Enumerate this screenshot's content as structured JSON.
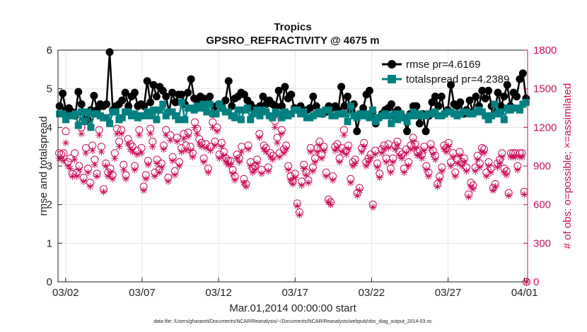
{
  "chart_data": {
    "type": "line",
    "title": "Tropics",
    "subtitle": "GPSRO_REFRACTIVITY @ 4675 m",
    "xlabel": "Mar.01,2014 00:00:00 start",
    "ylabel_left": "rmse and totalspread",
    "ylabel_right": "# of obs: o=possible; ×=assimilated",
    "footer": "data file: /Users/gharamti/Documents/NCAR/Reanalysis/~/Documents/NCAR/Reanalysis/webpub/obs_diag_output_2014-03.nc",
    "x_range_days": [
      0.5,
      31.2
    ],
    "x_ticks": [
      {
        "day": 1,
        "label": "03/02"
      },
      {
        "day": 6,
        "label": "03/07"
      },
      {
        "day": 11,
        "label": "03/12"
      },
      {
        "day": 16,
        "label": "03/17"
      },
      {
        "day": 21,
        "label": "03/22"
      },
      {
        "day": 26,
        "label": "03/27"
      },
      {
        "day": 31,
        "label": "04/01"
      }
    ],
    "ylim_left": [
      0,
      6
    ],
    "yticks_left": [
      "0",
      "1",
      "2",
      "3",
      "4",
      "5",
      "6"
    ],
    "ylim_right": [
      0,
      1800
    ],
    "yticks_right": [
      "0",
      "300",
      "600",
      "900",
      "1200",
      "1500",
      "1800"
    ],
    "grid": true,
    "legend_position": "top-right",
    "series": [
      {
        "name": "rmse",
        "legend": "rmse pr=4.6169",
        "color": "#000000",
        "axis": "left",
        "values": [
          4.55,
          4.88,
          4.45,
          4.5,
          4.4,
          4.3,
          4.92,
          4.6,
          4.2,
          4.2,
          4.45,
          4.82,
          4.45,
          4.6,
          4.55,
          4.6,
          5.95,
          4.45,
          4.55,
          4.6,
          4.7,
          4.9,
          4.55,
          4.8,
          4.9,
          4.55,
          4.6,
          4.55,
          5.2,
          4.65,
          5.1,
          4.8,
          5.05,
          4.95,
          4.8,
          4.4,
          4.9,
          4.65,
          4.85,
          4.85,
          4.6,
          4.9,
          5.25,
          4.75,
          4.7,
          4.8,
          4.75,
          4.6,
          4.8,
          4.35,
          4.55,
          4.6,
          4.5,
          4.7,
          5.2,
          4.55,
          4.75,
          4.8,
          4.9,
          4.85,
          4.7,
          4.6,
          4.5,
          4.45,
          4.55,
          4.8,
          4.6,
          4.7,
          4.6,
          4.55,
          4.95,
          4.55,
          5.05,
          4.75,
          4.85,
          4.5,
          4.45,
          4.55,
          4.4,
          4.45,
          4.5,
          4.8,
          4.55,
          4.4,
          4.35,
          4.4,
          4.55,
          4.5,
          4.55,
          4.45,
          5.05,
          4.55,
          4.8,
          4.45,
          4.6,
          3.9,
          4.35,
          4.5,
          4.85,
          4.95,
          4.4,
          4.1,
          4.25,
          4.35,
          4.45,
          4.5,
          4.6,
          4.3,
          4.45,
          4.35,
          4.25,
          3.9,
          4.35,
          4.55,
          4.55,
          4.1,
          4.35,
          3.9,
          4.3,
          4.65,
          4.8,
          4.55,
          4.8,
          4.35,
          4.45,
          5.1,
          4.6,
          4.55,
          4.65,
          4.35,
          4.45,
          4.7,
          4.4,
          4.8,
          4.55,
          4.95,
          4.75,
          4.95,
          4.55,
          4.4,
          4.9,
          4.55,
          4.8,
          5.1,
          4.55,
          4.9,
          4.8,
          5.25,
          5.4,
          4.75
        ]
      },
      {
        "name": "totalspread",
        "legend": "totalspread pr=4.2389",
        "color": "#008080",
        "axis": "left",
        "values": [
          4.35,
          4.35,
          4.2,
          4.3,
          4.3,
          4.35,
          4.05,
          4.4,
          4.15,
          4.4,
          4.0,
          4.35,
          4.35,
          4.3,
          4.25,
          4.25,
          4.1,
          4.4,
          4.4,
          4.2,
          4.25,
          4.4,
          4.4,
          4.3,
          4.35,
          4.25,
          4.3,
          4.3,
          4.4,
          4.3,
          4.45,
          4.2,
          4.45,
          4.6,
          4.3,
          4.4,
          4.4,
          4.3,
          4.2,
          4.65,
          4.2,
          4.5,
          4.5,
          4.45,
          4.55,
          4.5,
          4.6,
          4.4,
          4.6,
          4.35,
          4.35,
          4.6,
          4.5,
          4.4,
          4.4,
          4.3,
          4.25,
          4.45,
          4.2,
          4.45,
          4.5,
          4.2,
          4.35,
          4.45,
          4.3,
          4.45,
          4.4,
          4.3,
          4.25,
          4.4,
          4.35,
          4.25,
          4.4,
          4.3,
          4.35,
          4.45,
          4.45,
          4.35,
          4.4,
          4.25,
          4.25,
          4.3,
          4.35,
          4.4,
          4.35,
          4.45,
          4.45,
          4.3,
          4.3,
          4.35,
          4.35,
          4.35,
          4.15,
          4.55,
          4.3,
          4.25,
          4.35,
          4.3,
          4.35,
          4.25,
          4.45,
          4.15,
          4.25,
          4.3,
          4.35,
          4.3,
          4.1,
          4.35,
          4.2,
          4.35,
          4.25,
          4.15,
          4.3,
          4.4,
          4.3,
          4.35,
          4.3,
          4.3,
          4.35,
          4.35,
          4.4,
          4.3,
          4.3,
          4.35,
          4.4,
          4.4,
          4.35,
          4.3,
          4.35,
          4.4,
          4.4,
          4.35,
          4.35,
          4.4,
          4.45,
          4.4,
          4.3,
          4.2,
          4.3,
          4.6,
          4.35,
          4.4,
          4.2,
          4.5,
          4.45,
          4.5,
          4.5,
          4.45,
          4.6,
          4.65
        ]
      },
      {
        "name": "possible",
        "legend": "o=possible",
        "color": "#cc0e5a",
        "marker": "circle",
        "axis": "right",
        "values": [
          1000,
          990,
          1000,
          1170,
          930,
          960,
          840,
          1000,
          850,
          900,
          1200,
          810,
          1040,
          880,
          770,
          1060,
          950,
          840,
          1180,
          1050,
          720,
          920,
          850,
          880,
          830,
          1000,
          1190,
          1090,
          1180,
          910,
          830,
          1110,
          1070,
          1050,
          900,
          1020,
          1180,
          1040,
          740,
          830,
          940,
          1190,
          1090,
          850,
          950,
          870,
          920,
          1060,
          1180,
          810,
          1140,
          970,
          860,
          1120,
          930,
          1040,
          1150,
          1060,
          1160,
          1050,
          1000,
          1240,
          1190,
          1110,
          1080,
          960,
          1070,
          880,
          1050,
          1240,
          1090,
          1200,
          990,
          1080,
          1010,
          960,
          940,
          940,
          870,
          820,
          990,
          960,
          1050,
          800,
          760,
          1060,
          930,
          880,
          900,
          950,
          1150,
          870,
          1060,
          1040,
          890,
          1000,
          980,
          1250,
          1120,
          1000,
          1180,
          1030,
          1060,
          900,
          820,
          780,
          840,
          610,
          540,
          780,
          910,
          850,
          790,
          1040,
          890,
          960,
          1040,
          1090,
          990,
          1050,
          850,
          640,
          620,
          820,
          1050,
          1070,
          960,
          1040,
          1180,
          1020,
          1060,
          800,
          930,
          950,
          690,
          730,
          1040,
          1080,
          930,
          960,
          990,
          600,
          1020,
          920,
          840,
          1030,
          1060,
          960,
          1070,
          880,
          960,
          1060,
          1090,
          1010,
          990,
          880,
          1030,
          930,
          1060,
          1120,
          1070,
          1010,
          1020,
          990,
          1050,
          900,
          850,
          1070,
          1020,
          980,
          760,
          820,
          890,
          1060,
          1040,
          1080,
          930,
          1000,
          850,
          950,
          1010,
          930,
          960,
          890,
          680,
          770,
          750,
          890,
          980,
          920,
          1040,
          1030,
          850,
          930,
          880,
          730,
          760,
          920,
          950,
          1000,
          880,
          860,
          690,
          1000,
          1000,
          1000,
          900,
          1000,
          1000,
          700,
          0
        ]
      },
      {
        "name": "assimilated",
        "legend": "×=assimilated",
        "color": "#cc0e5a",
        "marker": "asterisk",
        "axis": "right",
        "values": [
          960,
          960,
          940,
          1080,
          900,
          880,
          820,
          950,
          820,
          870,
          1150,
          780,
          1000,
          850,
          740,
          1020,
          910,
          820,
          1140,
          1010,
          700,
          900,
          820,
          850,
          800,
          960,
          1150,
          1050,
          1150,
          870,
          800,
          1070,
          1030,
          1010,
          870,
          990,
          1140,
          1000,
          710,
          800,
          910,
          1150,
          1050,
          820,
          920,
          850,
          890,
          1030,
          1140,
          780,
          1100,
          940,
          830,
          1090,
          900,
          1010,
          1110,
          1020,
          1130,
          1020,
          970,
          1200,
          1150,
          1070,
          1050,
          930,
          1040,
          850,
          1020,
          1200,
          1060,
          1170,
          960,
          1050,
          980,
          930,
          910,
          910,
          840,
          790,
          960,
          930,
          1010,
          770,
          740,
          1030,
          900,
          850,
          870,
          920,
          1120,
          840,
          1030,
          1010,
          860,
          970,
          950,
          1200,
          1080,
          970,
          1150,
          1000,
          1030,
          870,
          790,
          760,
          810,
          590,
          520,
          750,
          880,
          830,
          770,
          1010,
          860,
          930,
          1010,
          1060,
          960,
          1020,
          820,
          620,
          600,
          790,
          1020,
          1040,
          930,
          1010,
          1140,
          990,
          1030,
          770,
          900,
          920,
          670,
          710,
          1010,
          1050,
          900,
          930,
          960,
          580,
          990,
          890,
          810,
          1000,
          1030,
          930,
          1040,
          850,
          930,
          1030,
          1060,
          980,
          960,
          850,
          1000,
          900,
          1030,
          1090,
          1040,
          980,
          990,
          960,
          1020,
          870,
          820,
          1040,
          990,
          950,
          740,
          790,
          860,
          1030,
          1010,
          1050,
          900,
          970,
          820,
          920,
          980,
          900,
          930,
          860,
          660,
          740,
          720,
          860,
          950,
          890,
          1010,
          1000,
          820,
          900,
          850,
          710,
          740,
          890,
          920,
          970,
          850,
          830,
          670,
          970,
          970,
          970,
          870,
          970,
          970,
          680,
          0
        ]
      }
    ]
  }
}
